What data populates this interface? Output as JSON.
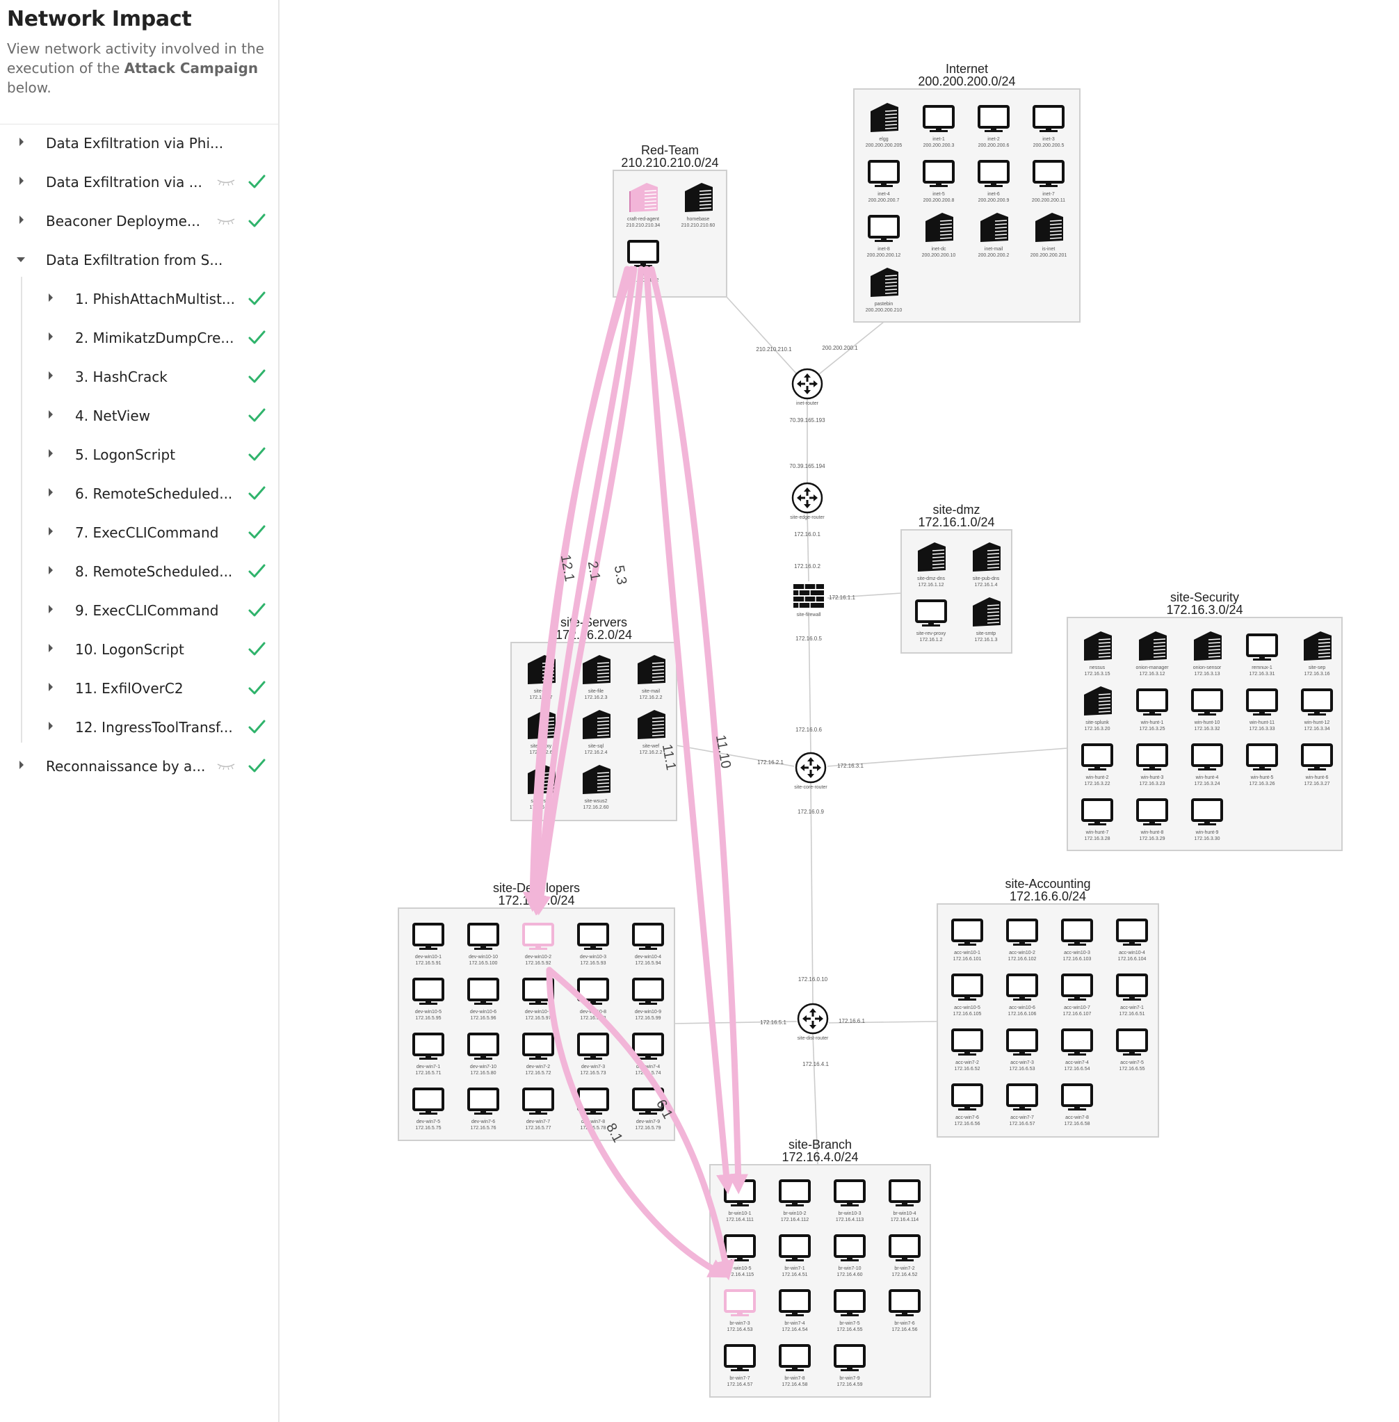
{
  "sidebar": {
    "title": "Network Impact",
    "desc_pre": "View network activity involved in the execution of the ",
    "desc_bold": "Attack Campaign",
    "desc_post": " below.",
    "items": [
      {
        "label": "Data Exfiltration via Phi...",
        "level": 0,
        "expanded": false,
        "hidden_icon": false,
        "check": false
      },
      {
        "label": "Data Exfiltration via ...",
        "level": 0,
        "expanded": false,
        "hidden_icon": true,
        "check": true
      },
      {
        "label": "Beaconer Deployme...",
        "level": 0,
        "expanded": false,
        "hidden_icon": true,
        "check": true
      },
      {
        "label": "Data Exfiltration from S...",
        "level": 0,
        "expanded": true,
        "hidden_icon": false,
        "check": false
      },
      {
        "label": "1. PhishAttachMultist...",
        "level": 1,
        "expanded": false,
        "hidden_icon": false,
        "check": true
      },
      {
        "label": "2. MimikatzDumpCre...",
        "level": 1,
        "expanded": false,
        "hidden_icon": false,
        "check": true
      },
      {
        "label": "3. HashCrack",
        "level": 1,
        "expanded": false,
        "hidden_icon": false,
        "check": true
      },
      {
        "label": "4. NetView",
        "level": 1,
        "expanded": false,
        "hidden_icon": false,
        "check": true
      },
      {
        "label": "5. LogonScript",
        "level": 1,
        "expanded": false,
        "hidden_icon": false,
        "check": true
      },
      {
        "label": "6. RemoteScheduled...",
        "level": 1,
        "expanded": false,
        "hidden_icon": false,
        "check": true
      },
      {
        "label": "7. ExecCLICommand",
        "level": 1,
        "expanded": false,
        "hidden_icon": false,
        "check": true
      },
      {
        "label": "8. RemoteScheduled...",
        "level": 1,
        "expanded": false,
        "hidden_icon": false,
        "check": true
      },
      {
        "label": "9. ExecCLICommand",
        "level": 1,
        "expanded": false,
        "hidden_icon": false,
        "check": true
      },
      {
        "label": "10. LogonScript",
        "level": 1,
        "expanded": false,
        "hidden_icon": false,
        "check": true
      },
      {
        "label": "11. ExfilOverC2",
        "level": 1,
        "expanded": false,
        "hidden_icon": false,
        "check": true
      },
      {
        "label": "12. IngressToolTransf...",
        "level": 1,
        "expanded": false,
        "hidden_icon": false,
        "check": true
      },
      {
        "label": "Reconnaissance by a...",
        "level": 0,
        "expanded": false,
        "hidden_icon": true,
        "check": true
      }
    ]
  },
  "colors": {
    "check": "#2fb36b",
    "highlight": "#f2b5d8",
    "node": "#111111",
    "subnet_bg": "#f5f5f5",
    "subnet_border": "#cfcfcf",
    "link": "#cccccc"
  },
  "network": {
    "subnets": [
      {
        "name": "Internet",
        "cidr": "200.200.200.0/24",
        "hosts": [
          {
            "name": "elgg",
            "ip": "200.200.200.205",
            "kind": "server"
          },
          {
            "name": "inet-1",
            "ip": "200.200.200.3",
            "kind": "pc"
          },
          {
            "name": "inet-2",
            "ip": "200.200.200.6",
            "kind": "pc"
          },
          {
            "name": "inet-3",
            "ip": "200.200.200.5",
            "kind": "pc"
          },
          {
            "name": "inet-4",
            "ip": "200.200.200.7",
            "kind": "pc"
          },
          {
            "name": "inet-5",
            "ip": "200.200.200.8",
            "kind": "pc"
          },
          {
            "name": "inet-6",
            "ip": "200.200.200.9",
            "kind": "pc"
          },
          {
            "name": "inet-7",
            "ip": "200.200.200.11",
            "kind": "pc"
          },
          {
            "name": "inet-8",
            "ip": "200.200.200.12",
            "kind": "pc"
          },
          {
            "name": "inet-dc",
            "ip": "200.200.200.10",
            "kind": "server"
          },
          {
            "name": "inet-mail",
            "ip": "200.200.200.2",
            "kind": "server"
          },
          {
            "name": "is-inet",
            "ip": "200.200.200.201",
            "kind": "server"
          },
          {
            "name": "pastebin",
            "ip": "200.200.200.210",
            "kind": "server"
          }
        ]
      },
      {
        "name": "Red-Team",
        "cidr": "210.210.210.0/24",
        "hosts": [
          {
            "name": "craft-red-agent",
            "ip": "210.210.210.34",
            "kind": "server",
            "hl": true
          },
          {
            "name": "homebase",
            "ip": "210.210.210.60",
            "kind": "server"
          },
          {
            "name": "red-1",
            "ip": "210.210.210.2",
            "kind": "pc"
          }
        ]
      },
      {
        "name": "site-dmz",
        "cidr": "172.16.1.0/24",
        "hosts": [
          {
            "name": "site-dmz-dns",
            "ip": "172.16.1.12",
            "kind": "server"
          },
          {
            "name": "site-pub-dns",
            "ip": "172.16.1.4",
            "kind": "server"
          },
          {
            "name": "site-rev-proxy",
            "ip": "172.16.1.2",
            "kind": "pc"
          },
          {
            "name": "site-smtp",
            "ip": "172.16.1.3",
            "kind": "server"
          }
        ]
      },
      {
        "name": "site-Servers",
        "cidr": "172.16.2.0/24",
        "hosts": [
          {
            "name": "site-dc",
            "ip": "172.16.2.7",
            "kind": "server"
          },
          {
            "name": "site-file",
            "ip": "172.16.2.3",
            "kind": "server"
          },
          {
            "name": "site-mail",
            "ip": "172.16.2.2",
            "kind": "server"
          },
          {
            "name": "site-proxy",
            "ip": "172.16.2.6",
            "kind": "server"
          },
          {
            "name": "site-sql",
            "ip": "172.16.2.4",
            "kind": "server"
          },
          {
            "name": "site-wef",
            "ip": "172.16.2.2",
            "kind": "server"
          },
          {
            "name": "site-wsus",
            "ip": "172.16.2.5",
            "kind": "server"
          },
          {
            "name": "site-wsus2",
            "ip": "172.16.2.60",
            "kind": "server"
          }
        ]
      },
      {
        "name": "site-Security",
        "cidr": "172.16.3.0/24",
        "hosts": [
          {
            "name": "nessus",
            "ip": "172.16.3.15",
            "kind": "server"
          },
          {
            "name": "onion-manager",
            "ip": "172.16.3.12",
            "kind": "server"
          },
          {
            "name": "onion-sensor",
            "ip": "172.16.3.13",
            "kind": "server"
          },
          {
            "name": "remnux-1",
            "ip": "172.16.3.31",
            "kind": "pc"
          },
          {
            "name": "site-sep",
            "ip": "172.16.3.16",
            "kind": "server"
          },
          {
            "name": "site-splunk",
            "ip": "172.16.3.20",
            "kind": "server"
          },
          {
            "name": "win-hunt-1",
            "ip": "172.16.3.25",
            "kind": "pc"
          },
          {
            "name": "win-hunt-10",
            "ip": "172.16.3.32",
            "kind": "pc"
          },
          {
            "name": "win-hunt-11",
            "ip": "172.16.3.33",
            "kind": "pc"
          },
          {
            "name": "win-hunt-12",
            "ip": "172.16.3.34",
            "kind": "pc"
          },
          {
            "name": "win-hunt-2",
            "ip": "172.16.3.22",
            "kind": "pc"
          },
          {
            "name": "win-hunt-3",
            "ip": "172.16.3.23",
            "kind": "pc"
          },
          {
            "name": "win-hunt-4",
            "ip": "172.16.3.24",
            "kind": "pc"
          },
          {
            "name": "win-hunt-5",
            "ip": "172.16.3.26",
            "kind": "pc"
          },
          {
            "name": "win-hunt-6",
            "ip": "172.16.3.27",
            "kind": "pc"
          },
          {
            "name": "win-hunt-7",
            "ip": "172.16.3.28",
            "kind": "pc"
          },
          {
            "name": "win-hunt-8",
            "ip": "172.16.3.29",
            "kind": "pc"
          },
          {
            "name": "win-hunt-9",
            "ip": "172.16.3.30",
            "kind": "pc"
          }
        ]
      },
      {
        "name": "site-Developers",
        "cidr": "172.16.5.0/24",
        "hosts": [
          {
            "name": "dev-win10-1",
            "ip": "172.16.5.91",
            "kind": "pc"
          },
          {
            "name": "dev-win10-10",
            "ip": "172.16.5.100",
            "kind": "pc"
          },
          {
            "name": "dev-win10-2",
            "ip": "172.16.5.92",
            "kind": "pc",
            "hl": true
          },
          {
            "name": "dev-win10-3",
            "ip": "172.16.5.93",
            "kind": "pc"
          },
          {
            "name": "dev-win10-4",
            "ip": "172.16.5.94",
            "kind": "pc"
          },
          {
            "name": "dev-win10-5",
            "ip": "172.16.5.95",
            "kind": "pc"
          },
          {
            "name": "dev-win10-6",
            "ip": "172.16.5.96",
            "kind": "pc"
          },
          {
            "name": "dev-win10-7",
            "ip": "172.16.5.97",
            "kind": "pc"
          },
          {
            "name": "dev-win10-8",
            "ip": "172.16.5.98",
            "kind": "pc"
          },
          {
            "name": "dev-win10-9",
            "ip": "172.16.5.99",
            "kind": "pc"
          },
          {
            "name": "dev-win7-1",
            "ip": "172.16.5.71",
            "kind": "pc"
          },
          {
            "name": "dev-win7-10",
            "ip": "172.16.5.80",
            "kind": "pc"
          },
          {
            "name": "dev-win7-2",
            "ip": "172.16.5.72",
            "kind": "pc"
          },
          {
            "name": "dev-win7-3",
            "ip": "172.16.5.73",
            "kind": "pc"
          },
          {
            "name": "dev-win7-4",
            "ip": "172.16.5.74",
            "kind": "pc"
          },
          {
            "name": "dev-win7-5",
            "ip": "172.16.5.75",
            "kind": "pc"
          },
          {
            "name": "dev-win7-6",
            "ip": "172.16.5.76",
            "kind": "pc"
          },
          {
            "name": "dev-win7-7",
            "ip": "172.16.5.77",
            "kind": "pc"
          },
          {
            "name": "dev-win7-8",
            "ip": "172.16.5.78",
            "kind": "pc"
          },
          {
            "name": "dev-win7-9",
            "ip": "172.16.5.79",
            "kind": "pc"
          }
        ]
      },
      {
        "name": "site-Accounting",
        "cidr": "172.16.6.0/24",
        "hosts": [
          {
            "name": "acc-win10-1",
            "ip": "172.16.6.101",
            "kind": "pc"
          },
          {
            "name": "acc-win10-2",
            "ip": "172.16.6.102",
            "kind": "pc"
          },
          {
            "name": "acc-win10-3",
            "ip": "172.16.6.103",
            "kind": "pc"
          },
          {
            "name": "acc-win10-4",
            "ip": "172.16.6.104",
            "kind": "pc"
          },
          {
            "name": "acc-win10-5",
            "ip": "172.16.6.105",
            "kind": "pc"
          },
          {
            "name": "acc-win10-6",
            "ip": "172.16.6.106",
            "kind": "pc"
          },
          {
            "name": "acc-win10-7",
            "ip": "172.16.6.107",
            "kind": "pc"
          },
          {
            "name": "acc-win7-1",
            "ip": "172.16.6.51",
            "kind": "pc"
          },
          {
            "name": "acc-win7-2",
            "ip": "172.16.6.52",
            "kind": "pc"
          },
          {
            "name": "acc-win7-3",
            "ip": "172.16.6.53",
            "kind": "pc"
          },
          {
            "name": "acc-win7-4",
            "ip": "172.16.6.54",
            "kind": "pc"
          },
          {
            "name": "acc-win7-5",
            "ip": "172.16.6.55",
            "kind": "pc"
          },
          {
            "name": "acc-win7-6",
            "ip": "172.16.6.56",
            "kind": "pc"
          },
          {
            "name": "acc-win7-7",
            "ip": "172.16.6.57",
            "kind": "pc"
          },
          {
            "name": "acc-win7-8",
            "ip": "172.16.6.58",
            "kind": "pc"
          }
        ]
      },
      {
        "name": "site-Branch",
        "cidr": "172.16.4.0/24",
        "hosts": [
          {
            "name": "br-win10-1",
            "ip": "172.16.4.111",
            "kind": "pc"
          },
          {
            "name": "br-win10-2",
            "ip": "172.16.4.112",
            "kind": "pc"
          },
          {
            "name": "br-win10-3",
            "ip": "172.16.4.113",
            "kind": "pc"
          },
          {
            "name": "br-win10-4",
            "ip": "172.16.4.114",
            "kind": "pc"
          },
          {
            "name": "br-win10-5",
            "ip": "172.16.4.115",
            "kind": "pc"
          },
          {
            "name": "br-win7-1",
            "ip": "172.16.4.51",
            "kind": "pc"
          },
          {
            "name": "br-win7-10",
            "ip": "172.16.4.60",
            "kind": "pc"
          },
          {
            "name": "br-win7-2",
            "ip": "172.16.4.52",
            "kind": "pc"
          },
          {
            "name": "br-win7-3",
            "ip": "172.16.4.53",
            "kind": "pc",
            "hl": true
          },
          {
            "name": "br-win7-4",
            "ip": "172.16.4.54",
            "kind": "pc"
          },
          {
            "name": "br-win7-5",
            "ip": "172.16.4.55",
            "kind": "pc"
          },
          {
            "name": "br-win7-6",
            "ip": "172.16.4.56",
            "kind": "pc"
          },
          {
            "name": "br-win7-7",
            "ip": "172.16.4.57",
            "kind": "pc"
          },
          {
            "name": "br-win7-8",
            "ip": "172.16.4.58",
            "kind": "pc"
          },
          {
            "name": "br-win7-9",
            "ip": "172.16.4.59",
            "kind": "pc"
          }
        ]
      }
    ],
    "routers": [
      {
        "name": "inet-router",
        "kind": "router"
      },
      {
        "name": "site-edge-router",
        "kind": "router"
      },
      {
        "name": "site-firewall",
        "kind": "firewall"
      },
      {
        "name": "site-core-router",
        "kind": "router"
      },
      {
        "name": "site-dist-router",
        "kind": "router"
      }
    ],
    "link_labels": [
      "210.210.210.1",
      "200.200.200.1",
      "70.39.165.193",
      "70.39.165.194",
      "172.16.0.1",
      "172.16.0.2",
      "172.16.1.1",
      "172.16.0.5",
      "172.16.0.6",
      "172.16.2.1",
      "172.16.3.1",
      "172.16.0.9",
      "172.16.0.10",
      "172.16.5.1",
      "172.16.6.1",
      "172.16.4.1"
    ],
    "activity_labels": [
      "12.1",
      "2.1",
      "5.3",
      "11.1",
      "11.10",
      "6.1",
      "8.1"
    ]
  }
}
